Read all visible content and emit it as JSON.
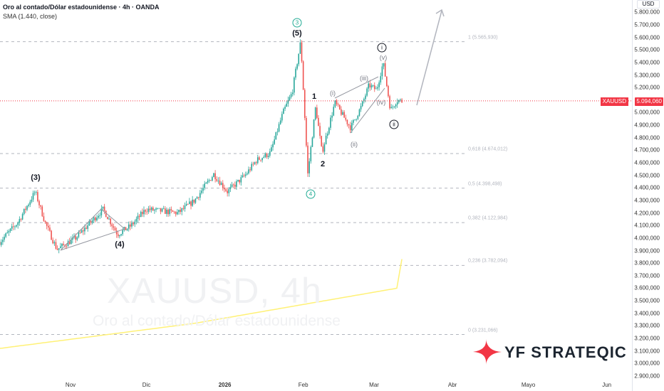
{
  "header": {
    "title": "Oro al contado/Dólar estadounidense · 4h · OANDA",
    "indicator": "SMA (1.440, close)"
  },
  "watermark": {
    "symbol": "XAUUSD, 4h",
    "name": "Oro al contado/Dólar estadounidense"
  },
  "price_axis": {
    "currency": "USD",
    "ticks": [
      "5.800.000",
      "5.700,000",
      "5.600,000",
      "5.500,000",
      "5.400,000",
      "5.300,000",
      "5.200,000",
      "5.000,000",
      "4.900,000",
      "4.800,000",
      "4.700,000",
      "4.600,000",
      "4.500,000",
      "4.400,000",
      "4.300,000",
      "4.200,000",
      "4.100,000",
      "4.000,000",
      "3.900,000",
      "3.800,000",
      "3.700,000",
      "3.600,000",
      "3.500,000",
      "3.400,000",
      "3.300,000",
      "3.200,000",
      "3.100,000",
      "3.000,000",
      "2.900,000"
    ],
    "tick_values": [
      5.8,
      5.7,
      5.6,
      5.5,
      5.4,
      5.3,
      5.2,
      5.0,
      4.9,
      4.8,
      4.7,
      4.6,
      4.5,
      4.4,
      4.3,
      4.2,
      4.1,
      4.0,
      3.9,
      3.8,
      3.7,
      3.6,
      3.5,
      3.4,
      3.3,
      3.2,
      3.1,
      3.0,
      2.9
    ],
    "current_symbol": "XAUUSD",
    "current_price": "5.094,060",
    "current_value": 5.09406
  },
  "time_axis": {
    "labels": [
      "Nov",
      "Dic",
      "2026",
      "Feb",
      "Mar",
      "Abr",
      "Mayo",
      "Jun"
    ],
    "days": [
      31,
      61,
      92,
      123,
      151,
      182,
      212,
      243
    ]
  },
  "colors": {
    "up": "#26a69a",
    "down": "#ef5350",
    "sma": "#fff176",
    "fib": "#b2b5be",
    "price_line": "#f23645",
    "accent": "#f23645"
  },
  "fibonacci": [
    {
      "label": "1 (5.565,930)",
      "value": 5.56593
    },
    {
      "label": "0,618 (4.674,012)",
      "value": 4.674012
    },
    {
      "label": "0,5 (4.398,498)",
      "value": 4.398498
    },
    {
      "label": "0,382 (4.122,984)",
      "value": 4.122984
    },
    {
      "label": "0,236 (3.782,094)",
      "value": 3.782094
    },
    {
      "label": "0 (3.231,066)",
      "value": 3.231066
    }
  ],
  "waves": {
    "w3_small": "(3)",
    "w4_small": "(4)",
    "w5_small": "(5)",
    "w3_circle": "3",
    "w4_circle": "4",
    "w1": "1",
    "w2": "2",
    "wi": "(i)",
    "wii": "(ii)",
    "wiii": "(iii)",
    "wiv": "(iv)",
    "wv": "(v)",
    "ci": "i",
    "cii": "ii"
  },
  "logo": {
    "text": "YF STRATEQIC"
  },
  "chart_data": {
    "type": "candlestick",
    "title": "Oro al contado/Dólar estadounidense · 4h · OANDA",
    "x_unit": "days since Oct 1 2025",
    "y_unit": "price (millions, axis shown as 5.000,000 style)",
    "ylim": [
      2.85,
      5.85
    ],
    "xlim": [
      3,
      260
    ],
    "price_path": [
      [
        3,
        3.97
      ],
      [
        10,
        4.12
      ],
      [
        17,
        4.37
      ],
      [
        21,
        4.12
      ],
      [
        25.6,
        3.91
      ],
      [
        33,
        4.0
      ],
      [
        43.9,
        4.23
      ],
      [
        49.6,
        4.03
      ],
      [
        55,
        4.1
      ],
      [
        60.8,
        4.23
      ],
      [
        73.5,
        4.2
      ],
      [
        80,
        4.3
      ],
      [
        87.6,
        4.51
      ],
      [
        93,
        4.37
      ],
      [
        100,
        4.5
      ],
      [
        104.5,
        4.62
      ],
      [
        110,
        4.68
      ],
      [
        115,
        5.0
      ],
      [
        118.6,
        5.16
      ],
      [
        122,
        5.57
      ],
      [
        124.8,
        4.51
      ],
      [
        127.9,
        5.05
      ],
      [
        130.4,
        4.68
      ],
      [
        135.5,
        5.08
      ],
      [
        141.7,
        4.88
      ],
      [
        146,
        5.05
      ],
      [
        149,
        5.22
      ],
      [
        152,
        5.18
      ],
      [
        154.6,
        5.4
      ],
      [
        157.5,
        5.02
      ],
      [
        160,
        5.1
      ],
      [
        162.5,
        5.09
      ]
    ],
    "sma": [
      [
        3,
        3.12
      ],
      [
        80,
        3.32
      ],
      [
        160,
        3.6
      ],
      [
        162.5,
        3.89
      ]
    ],
    "projection": [
      [
        164,
        5.08
      ],
      [
        176,
        5.84
      ]
    ]
  }
}
